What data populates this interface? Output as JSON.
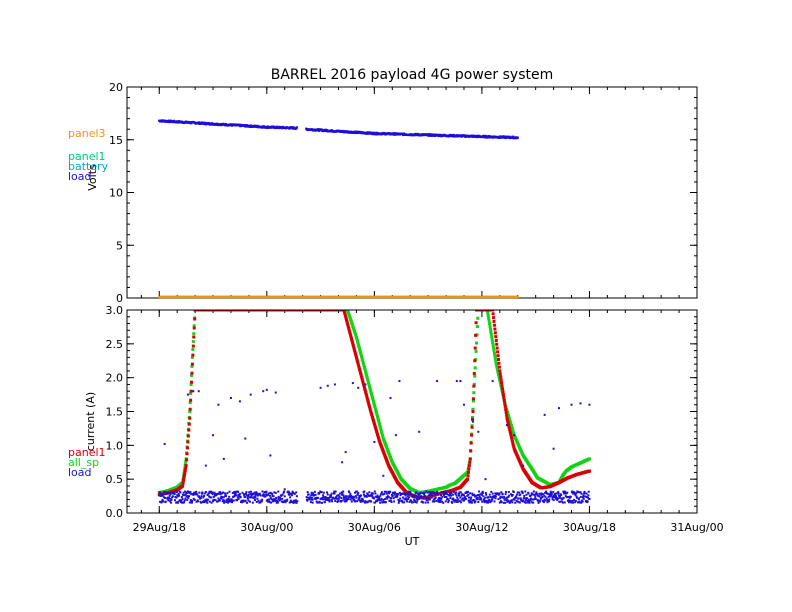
{
  "chart_data": [
    {
      "type": "scatter",
      "title": "BARREL 2016 payload 4G power system",
      "ylabel": "Volts",
      "xlabel": "",
      "ylim": [
        0,
        20
      ],
      "yticks": [
        0,
        5,
        10,
        15,
        20
      ],
      "ytick_labels": [
        "0",
        "5",
        "10",
        "15",
        "20"
      ],
      "legend_position": "left",
      "legend": [
        {
          "name": "panel3",
          "color": "#e8960c"
        },
        {
          "name": "panel1",
          "color": "#00c880"
        },
        {
          "name": "battery",
          "color": "#00a8c8"
        },
        {
          "name": "load",
          "color": "#1e0fd6"
        }
      ],
      "series": [
        {
          "name": "load",
          "color": "#1e0fd6",
          "x": [
            0,
            2,
            4,
            6,
            7.7,
            8.2,
            10,
            12,
            14,
            16,
            18,
            20
          ],
          "y": [
            16.8,
            16.6,
            16.4,
            16.2,
            16.1,
            16.0,
            15.8,
            15.6,
            15.5,
            15.4,
            15.3,
            15.2
          ],
          "gaps_after": [
            7.7
          ]
        },
        {
          "name": "panel3",
          "color": "#e8960c",
          "x": [
            0,
            5,
            10,
            15,
            20
          ],
          "y": [
            0.1,
            0.1,
            0.1,
            0.1,
            0.1
          ]
        }
      ]
    },
    {
      "type": "scatter",
      "ylabel": "current (A)",
      "xlabel": "UT",
      "ylim": [
        0,
        3
      ],
      "yticks": [
        0,
        0.5,
        1,
        1.5,
        2,
        2.5,
        3
      ],
      "ytick_labels": [
        "0.0",
        "0.5",
        "1.0",
        "1.5",
        "2.0",
        "2.5",
        "3.0"
      ],
      "legend_position": "left",
      "legend": [
        {
          "name": "panel1",
          "color": "#d80000"
        },
        {
          "name": "all_sp",
          "color": "#14d214"
        },
        {
          "name": "load",
          "color": "#1e0fd6"
        }
      ],
      "series": [
        {
          "name": "all_sp",
          "color": "#14d214",
          "x": [
            0,
            0.5,
            1.0,
            1.3,
            1.5,
            1.7,
            1.85,
            2.0,
            2.2,
            10.5,
            11.0,
            11.5,
            12.0,
            12.5,
            13.0,
            13.5,
            14.0,
            14.5,
            15.0,
            15.5,
            16.0,
            16.2,
            16.3,
            16.5,
            17.2,
            17.35,
            17.8,
            18.3,
            18.8,
            19.3,
            19.8,
            20.3,
            20.8,
            21.1,
            21.8,
            22.3,
            22.5,
            22.7,
            23.0,
            23.5,
            24.0
          ],
          "y": [
            0.3,
            0.33,
            0.38,
            0.45,
            0.8,
            1.5,
            2.3,
            3.0,
            3.0,
            3.0,
            2.6,
            2.1,
            1.6,
            1.1,
            0.75,
            0.5,
            0.36,
            0.3,
            0.32,
            0.35,
            0.38,
            0.41,
            0.42,
            0.44,
            0.6,
            0.8,
            3.0,
            3.0,
            2.2,
            1.6,
            1.15,
            0.85,
            0.65,
            0.52,
            0.42,
            0.45,
            0.55,
            0.62,
            0.68,
            0.74,
            0.8
          ]
        },
        {
          "name": "panel1",
          "color": "#d80000",
          "x": [
            0,
            0.5,
            1.0,
            1.3,
            1.5,
            1.7,
            1.85,
            2.0,
            10.3,
            10.8,
            11.3,
            11.8,
            12.3,
            12.8,
            13.3,
            13.8,
            14.3,
            14.8,
            15.3,
            15.8,
            16.3,
            16.8,
            17.2,
            17.35,
            17.5,
            17.7,
            18.6,
            19.0,
            19.4,
            19.8,
            20.3,
            20.8,
            21.3,
            21.8,
            22.3,
            22.8,
            23.3,
            24.0
          ],
          "y": [
            0.27,
            0.3,
            0.34,
            0.4,
            0.7,
            1.4,
            2.2,
            3.0,
            3.0,
            2.5,
            2.0,
            1.5,
            1.05,
            0.7,
            0.45,
            0.3,
            0.24,
            0.22,
            0.26,
            0.3,
            0.33,
            0.38,
            0.5,
            0.8,
            1.5,
            3.0,
            3.0,
            2.1,
            1.4,
            0.95,
            0.65,
            0.45,
            0.37,
            0.39,
            0.45,
            0.52,
            0.57,
            0.62
          ]
        },
        {
          "name": "load",
          "color": "#1e0fd6",
          "x": [
            0,
            24
          ],
          "y": [
            0.22,
            0.22
          ],
          "band": [
            0.15,
            0.32
          ],
          "outliers": [
            [
              0.3,
              1.02
            ],
            [
              1.6,
              1.75
            ],
            [
              1.9,
              1.8
            ],
            [
              2.2,
              1.8
            ],
            [
              2.6,
              0.7
            ],
            [
              3.0,
              1.15
            ],
            [
              3.3,
              1.6
            ],
            [
              3.6,
              0.8
            ],
            [
              4.0,
              1.7
            ],
            [
              4.5,
              1.65
            ],
            [
              4.8,
              1.1
            ],
            [
              5.1,
              1.75
            ],
            [
              5.8,
              1.8
            ],
            [
              6.0,
              1.82
            ],
            [
              6.2,
              0.85
            ],
            [
              6.5,
              1.78
            ],
            [
              7.0,
              0.35
            ],
            [
              8.5,
              0.3
            ],
            [
              9.0,
              1.85
            ],
            [
              9.4,
              1.88
            ],
            [
              9.8,
              1.9
            ],
            [
              10.2,
              0.75
            ],
            [
              10.4,
              0.9
            ],
            [
              10.8,
              1.92
            ],
            [
              11.1,
              1.85
            ],
            [
              11.5,
              1.9
            ],
            [
              12.0,
              1.05
            ],
            [
              12.5,
              0.55
            ],
            [
              12.9,
              1.7
            ],
            [
              13.2,
              1.15
            ],
            [
              13.4,
              1.95
            ],
            [
              14.5,
              1.2
            ],
            [
              15.5,
              1.95
            ],
            [
              16.6,
              1.95
            ],
            [
              16.8,
              1.95
            ],
            [
              17.0,
              1.6
            ],
            [
              17.5,
              1.35
            ],
            [
              17.8,
              1.2
            ],
            [
              18.2,
              0.5
            ],
            [
              18.6,
              1.95
            ],
            [
              19.4,
              1.3
            ],
            [
              19.8,
              1.15
            ],
            [
              20.3,
              0.7
            ],
            [
              21.5,
              1.45
            ],
            [
              22.0,
              0.95
            ],
            [
              22.3,
              1.55
            ],
            [
              23.0,
              1.6
            ],
            [
              23.5,
              1.62
            ],
            [
              24.0,
              1.6
            ]
          ]
        }
      ]
    }
  ],
  "shared_x": {
    "range_hours": [
      -1.8,
      30
    ],
    "ticks_hours": [
      0,
      6,
      12,
      18,
      24,
      30
    ],
    "tick_labels": [
      "29Aug/18",
      "30Aug/00",
      "30Aug/06",
      "30Aug/12",
      "30Aug/18",
      "31Aug/00"
    ]
  }
}
